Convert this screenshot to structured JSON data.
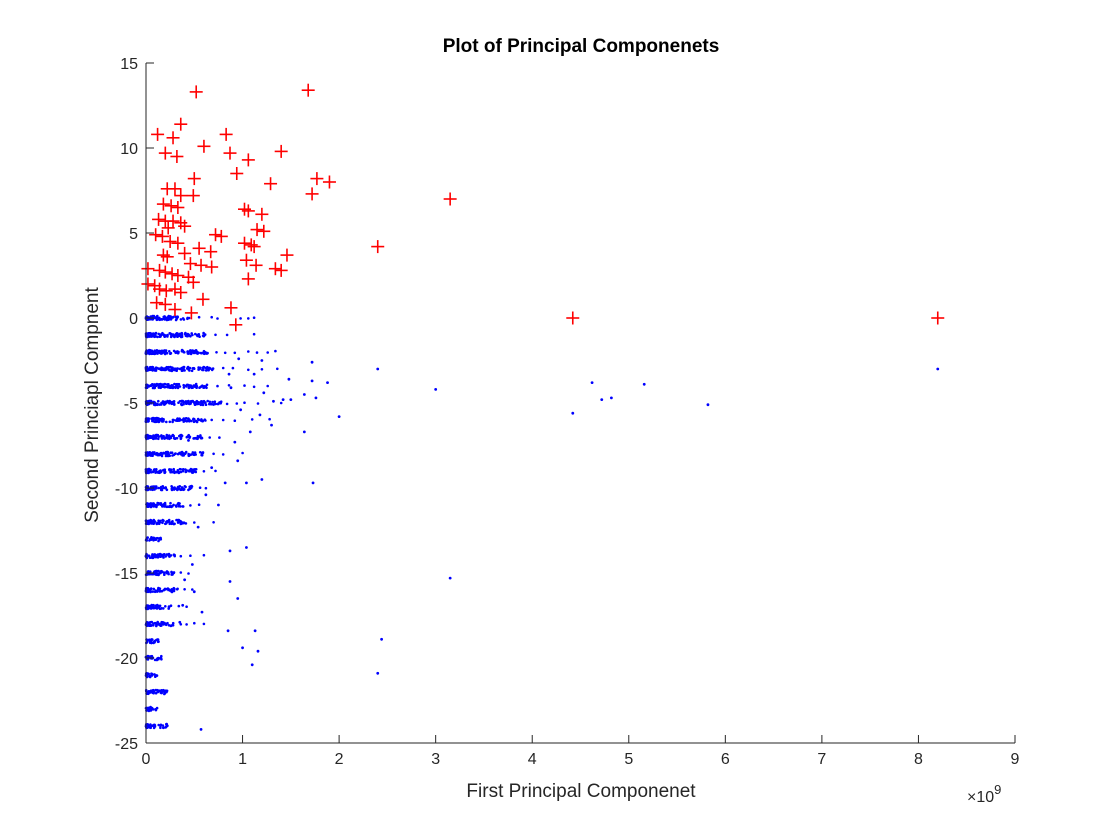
{
  "chart_data": {
    "type": "scatter",
    "title": "Plot of Principal Componenets",
    "xlabel": "First Principal Componenet",
    "ylabel": "Second Princiapl Compnent",
    "xlim": [
      0,
      9
    ],
    "ylim": [
      -25,
      15
    ],
    "x_exponent_label": "×10",
    "x_exponent_power": "9",
    "xticks": [
      "0",
      "1",
      "2",
      "3",
      "4",
      "5",
      "6",
      "7",
      "8",
      "9"
    ],
    "yticks": [
      "15",
      "10",
      "5",
      "0",
      "-5",
      "-10",
      "-15",
      "-20",
      "-25"
    ],
    "x_unit_multiplier": 1000000000,
    "grid": false,
    "legend": "none",
    "series": [
      {
        "marker": "plus",
        "color": "#ff0000",
        "points": [
          [
            0.52,
            13.3
          ],
          [
            1.68,
            13.4
          ],
          [
            0.36,
            11.4
          ],
          [
            0.12,
            10.8
          ],
          [
            0.83,
            10.8
          ],
          [
            0.28,
            10.6
          ],
          [
            0.6,
            10.1
          ],
          [
            0.2,
            9.7
          ],
          [
            0.32,
            9.5
          ],
          [
            0.87,
            9.7
          ],
          [
            1.06,
            9.3
          ],
          [
            1.4,
            9.8
          ],
          [
            0.94,
            8.5
          ],
          [
            0.5,
            8.2
          ],
          [
            1.29,
            7.9
          ],
          [
            1.77,
            8.2
          ],
          [
            1.9,
            8.0
          ],
          [
            0.22,
            7.6
          ],
          [
            0.3,
            7.6
          ],
          [
            1.72,
            7.3
          ],
          [
            3.15,
            7.0
          ],
          [
            0.36,
            7.2
          ],
          [
            0.49,
            7.2
          ],
          [
            0.18,
            6.7
          ],
          [
            0.26,
            6.6
          ],
          [
            0.33,
            6.5
          ],
          [
            1.02,
            6.4
          ],
          [
            1.06,
            6.3
          ],
          [
            1.2,
            6.1
          ],
          [
            0.13,
            5.8
          ],
          [
            0.2,
            5.7
          ],
          [
            0.28,
            5.7
          ],
          [
            0.36,
            5.6
          ],
          [
            0.4,
            5.4
          ],
          [
            0.23,
            5.3
          ],
          [
            1.15,
            5.2
          ],
          [
            1.22,
            5.1
          ],
          [
            0.1,
            4.9
          ],
          [
            0.17,
            4.8
          ],
          [
            0.72,
            4.9
          ],
          [
            0.78,
            4.8
          ],
          [
            0.25,
            4.5
          ],
          [
            0.33,
            4.4
          ],
          [
            1.02,
            4.4
          ],
          [
            1.09,
            4.3
          ],
          [
            1.12,
            4.2
          ],
          [
            2.4,
            4.2
          ],
          [
            0.55,
            4.1
          ],
          [
            0.67,
            3.9
          ],
          [
            0.18,
            3.7
          ],
          [
            0.22,
            3.6
          ],
          [
            0.4,
            3.8
          ],
          [
            1.46,
            3.7
          ],
          [
            1.04,
            3.4
          ],
          [
            0.46,
            3.2
          ],
          [
            0.57,
            3.1
          ],
          [
            0.68,
            3.0
          ],
          [
            1.14,
            3.1
          ],
          [
            1.34,
            2.9
          ],
          [
            1.4,
            2.8
          ],
          [
            0.02,
            2.9
          ],
          [
            0.14,
            2.8
          ],
          [
            0.2,
            2.7
          ],
          [
            0.27,
            2.6
          ],
          [
            0.33,
            2.5
          ],
          [
            0.44,
            2.4
          ],
          [
            1.06,
            2.3
          ],
          [
            0.49,
            2.1
          ],
          [
            0.02,
            2.0
          ],
          [
            0.09,
            1.9
          ],
          [
            0.14,
            1.7
          ],
          [
            0.21,
            1.6
          ],
          [
            0.3,
            1.7
          ],
          [
            0.36,
            1.5
          ],
          [
            0.59,
            1.1
          ],
          [
            0.11,
            0.9
          ],
          [
            0.2,
            0.8
          ],
          [
            0.3,
            0.5
          ],
          [
            0.47,
            0.3
          ],
          [
            0.88,
            0.6
          ],
          [
            0.93,
            -0.4
          ],
          [
            4.42,
            0.0
          ],
          [
            8.2,
            0.0
          ]
        ]
      },
      {
        "marker": "dot",
        "color": "#0000ff",
        "points": [
          [
            2.4,
            -3.0
          ],
          [
            8.2,
            -3.0
          ],
          [
            3.0,
            -4.2
          ],
          [
            4.62,
            -3.8
          ],
          [
            5.16,
            -3.9
          ],
          [
            4.72,
            -4.8
          ],
          [
            4.82,
            -4.7
          ],
          [
            4.42,
            -5.6
          ],
          [
            5.82,
            -5.1
          ],
          [
            1.72,
            -3.7
          ],
          [
            1.88,
            -3.8
          ],
          [
            1.64,
            -4.5
          ],
          [
            1.76,
            -4.7
          ],
          [
            1.5,
            -4.8
          ],
          [
            2.0,
            -5.8
          ],
          [
            1.22,
            -4.4
          ],
          [
            1.32,
            -4.9
          ],
          [
            1.42,
            -4.8
          ],
          [
            1.48,
            -3.6
          ],
          [
            1.64,
            -6.7
          ],
          [
            1.72,
            -2.6
          ],
          [
            1.3,
            -6.3
          ],
          [
            0.95,
            -8.4
          ],
          [
            0.82,
            -9.7
          ],
          [
            1.04,
            -9.7
          ],
          [
            1.2,
            -9.5
          ],
          [
            1.73,
            -9.7
          ],
          [
            0.75,
            -11.0
          ],
          [
            0.87,
            -13.7
          ],
          [
            1.04,
            -13.5
          ],
          [
            0.87,
            -15.5
          ],
          [
            0.95,
            -16.5
          ],
          [
            3.15,
            -15.3
          ],
          [
            0.85,
            -18.4
          ],
          [
            1.13,
            -18.4
          ],
          [
            1.0,
            -19.4
          ],
          [
            1.16,
            -19.6
          ],
          [
            1.1,
            -20.4
          ],
          [
            2.44,
            -18.9
          ],
          [
            2.4,
            -20.9
          ],
          [
            0.57,
            -24.2
          ],
          [
            0.58,
            -17.3
          ],
          [
            0.4,
            -15.4
          ],
          [
            0.35,
            -17.9
          ],
          [
            0.38,
            -16.9
          ],
          [
            0.5,
            -16.1
          ],
          [
            0.48,
            -14.5
          ],
          [
            0.54,
            -12.3
          ],
          [
            0.62,
            -10.4
          ],
          [
            0.68,
            -8.8
          ],
          [
            0.44,
            -7.2
          ],
          [
            0.92,
            -7.3
          ],
          [
            0.98,
            -5.4
          ],
          [
            1.08,
            -6.7
          ],
          [
            1.18,
            -5.7
          ],
          [
            0.96,
            -2.4
          ],
          [
            0.86,
            -3.3
          ],
          [
            1.2,
            -2.5
          ],
          [
            1.12,
            -3.3
          ],
          [
            0.88,
            -4.1
          ]
        ]
      }
    ],
    "dense_rows": [
      {
        "y": 0.0,
        "xmax": 0.45,
        "stray": [
          0.55,
          0.68,
          0.74,
          0.98,
          1.06,
          1.12
        ]
      },
      {
        "y": -1.0,
        "xmax": 0.62,
        "stray": [
          0.72,
          0.84,
          1.12
        ]
      },
      {
        "y": -2.0,
        "xmax": 0.64,
        "stray": [
          0.73,
          0.82,
          0.92,
          1.06,
          1.15,
          1.26,
          1.34
        ]
      },
      {
        "y": -3.0,
        "xmax": 0.72,
        "stray": [
          0.8,
          0.9,
          1.06,
          1.2,
          1.36
        ]
      },
      {
        "y": -4.0,
        "xmax": 0.66,
        "stray": [
          0.74,
          0.86,
          1.02,
          1.12,
          1.26
        ]
      },
      {
        "y": -5.0,
        "xmax": 0.78,
        "stray": [
          0.84,
          0.94,
          1.02,
          1.16,
          1.4
        ]
      },
      {
        "y": -6.0,
        "xmax": 0.62,
        "stray": [
          0.68,
          0.8,
          0.92,
          1.1,
          1.28
        ]
      },
      {
        "y": -7.0,
        "xmax": 0.6,
        "stray": [
          0.66,
          0.76
        ]
      },
      {
        "y": -8.0,
        "xmax": 0.6,
        "stray": [
          0.7,
          0.8,
          1.0
        ]
      },
      {
        "y": -9.0,
        "xmax": 0.52,
        "stray": [
          0.6,
          0.72
        ]
      },
      {
        "y": -10.0,
        "xmax": 0.48,
        "stray": [
          0.56,
          0.62
        ]
      },
      {
        "y": -11.0,
        "xmax": 0.4,
        "stray": [
          0.46,
          0.55
        ]
      },
      {
        "y": -12.0,
        "xmax": 0.42,
        "stray": [
          0.5,
          0.7
        ]
      },
      {
        "y": -13.0,
        "xmax": 0.16,
        "stray": []
      },
      {
        "y": -14.0,
        "xmax": 0.3,
        "stray": [
          0.36,
          0.46,
          0.6
        ]
      },
      {
        "y": -15.0,
        "xmax": 0.3,
        "stray": [
          0.36,
          0.44
        ]
      },
      {
        "y": -16.0,
        "xmax": 0.34,
        "stray": [
          0.4,
          0.48
        ]
      },
      {
        "y": -17.0,
        "xmax": 0.26,
        "stray": [
          0.34,
          0.42
        ]
      },
      {
        "y": -18.0,
        "xmax": 0.3,
        "stray": [
          0.36,
          0.42,
          0.5,
          0.6
        ]
      },
      {
        "y": -19.0,
        "xmax": 0.14,
        "stray": []
      },
      {
        "y": -20.0,
        "xmax": 0.16,
        "stray": []
      },
      {
        "y": -21.0,
        "xmax": 0.12,
        "stray": []
      },
      {
        "y": -22.0,
        "xmax": 0.22,
        "stray": []
      },
      {
        "y": -23.0,
        "xmax": 0.12,
        "stray": []
      },
      {
        "y": -24.0,
        "xmax": 0.24,
        "stray": []
      }
    ]
  }
}
